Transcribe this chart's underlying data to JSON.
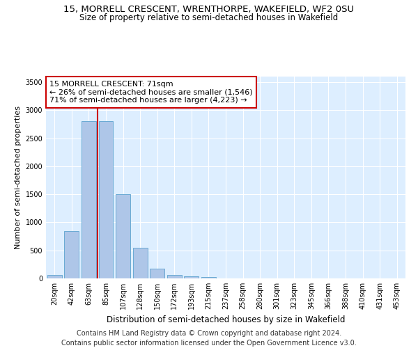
{
  "title1": "15, MORRELL CRESCENT, WRENTHORPE, WAKEFIELD, WF2 0SU",
  "title2": "Size of property relative to semi-detached houses in Wakefield",
  "xlabel": "Distribution of semi-detached houses by size in Wakefield",
  "ylabel": "Number of semi-detached properties",
  "bar_color": "#aec6e8",
  "bar_edge_color": "#6aaad4",
  "background_color": "#ddeeff",
  "categories": [
    "20sqm",
    "42sqm",
    "63sqm",
    "85sqm",
    "107sqm",
    "128sqm",
    "150sqm",
    "172sqm",
    "193sqm",
    "215sqm",
    "237sqm",
    "258sqm",
    "280sqm",
    "301sqm",
    "323sqm",
    "345sqm",
    "366sqm",
    "388sqm",
    "410sqm",
    "431sqm",
    "453sqm"
  ],
  "values": [
    60,
    840,
    2800,
    2800,
    1500,
    550,
    170,
    60,
    35,
    20,
    0,
    0,
    0,
    0,
    0,
    0,
    0,
    0,
    0,
    0,
    0
  ],
  "ylim": [
    0,
    3600
  ],
  "yticks": [
    0,
    500,
    1000,
    1500,
    2000,
    2500,
    3000,
    3500
  ],
  "vline_index": 2.5,
  "annotation_text": "15 MORRELL CRESCENT: 71sqm\n← 26% of semi-detached houses are smaller (1,546)\n71% of semi-detached houses are larger (4,223) →",
  "annotation_box_color": "#ffffff",
  "annotation_box_edge": "#cc0000",
  "vline_color": "#cc0000",
  "footer": "Contains HM Land Registry data © Crown copyright and database right 2024.\nContains public sector information licensed under the Open Government Licence v3.0.",
  "title_fontsize": 9.5,
  "subtitle_fontsize": 8.5,
  "annotation_fontsize": 8,
  "footer_fontsize": 7,
  "ylabel_fontsize": 8,
  "xlabel_fontsize": 8.5,
  "tick_fontsize": 7
}
